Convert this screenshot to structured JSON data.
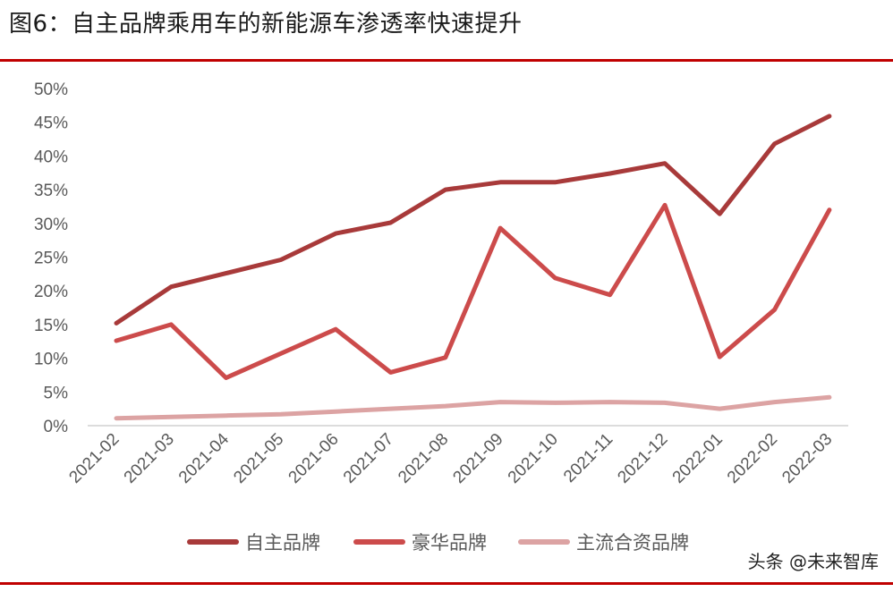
{
  "header": {
    "title": "图6：自主品牌乘用车的新能源车渗透率快速提升"
  },
  "watermark": "头条 @未来智库",
  "chart_data": {
    "type": "line",
    "title": "图6：自主品牌乘用车的新能源车渗透率快速提升",
    "xlabel": "",
    "ylabel": "",
    "ylim": [
      0,
      50
    ],
    "yticks": [
      "0%",
      "5%",
      "10%",
      "15%",
      "20%",
      "25%",
      "30%",
      "35%",
      "40%",
      "45%",
      "50%"
    ],
    "grid": false,
    "legend_position": "bottom",
    "categories": [
      "2021-02",
      "2021-03",
      "2021-04",
      "2021-05",
      "2021-06",
      "2021-07",
      "2021-08",
      "2021-09",
      "2021-10",
      "2021-11",
      "2021-12",
      "2022-01",
      "2022-02",
      "2022-03"
    ],
    "series": [
      {
        "name": "自主品牌",
        "color": "#a83a3a",
        "values": [
          15.2,
          20.6,
          22.6,
          24.6,
          28.5,
          30.1,
          35.0,
          36.1,
          36.1,
          37.4,
          38.9,
          31.4,
          41.8,
          45.9
        ]
      },
      {
        "name": "豪华品牌",
        "color": "#cc4b4b",
        "values": [
          12.6,
          15.0,
          7.1,
          10.7,
          14.3,
          7.9,
          10.1,
          29.3,
          21.9,
          19.4,
          32.7,
          10.2,
          17.2,
          32.0
        ]
      },
      {
        "name": "主流合资品牌",
        "color": "#dca3a3",
        "values": [
          1.1,
          1.3,
          1.5,
          1.7,
          2.1,
          2.5,
          2.9,
          3.5,
          3.4,
          3.5,
          3.4,
          2.5,
          3.5,
          4.2
        ]
      }
    ]
  }
}
